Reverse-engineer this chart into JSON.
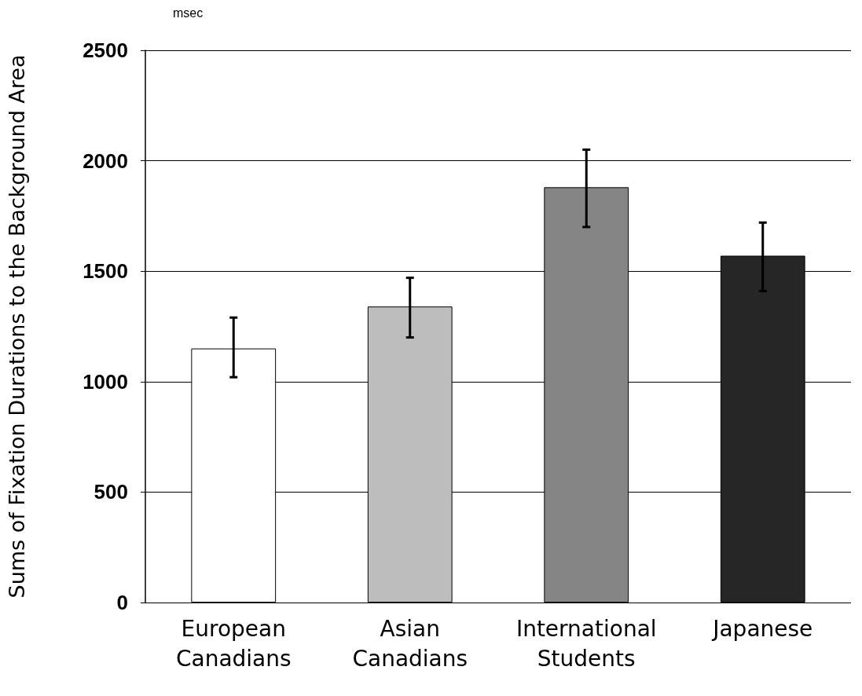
{
  "chart_data": {
    "type": "bar",
    "ylabel": "Sums of Fixation Durations to the Background Area",
    "annotations": [
      "msec"
    ],
    "categories": [
      "European Canadians",
      "Asian Canadians",
      "International Students",
      "Japanese"
    ],
    "values": [
      1150,
      1340,
      1880,
      1570
    ],
    "colors": [
      "#ffffff",
      "#bdbdbd",
      "#858585",
      "#262626"
    ],
    "errors": [
      [
        1020,
        1290
      ],
      [
        1200,
        1470
      ],
      [
        1700,
        2050
      ],
      [
        1410,
        1720
      ]
    ],
    "ylim": [
      0,
      2500
    ],
    "yticks": [
      0,
      500,
      1000,
      1500,
      2000,
      2500
    ],
    "grid": "y"
  }
}
